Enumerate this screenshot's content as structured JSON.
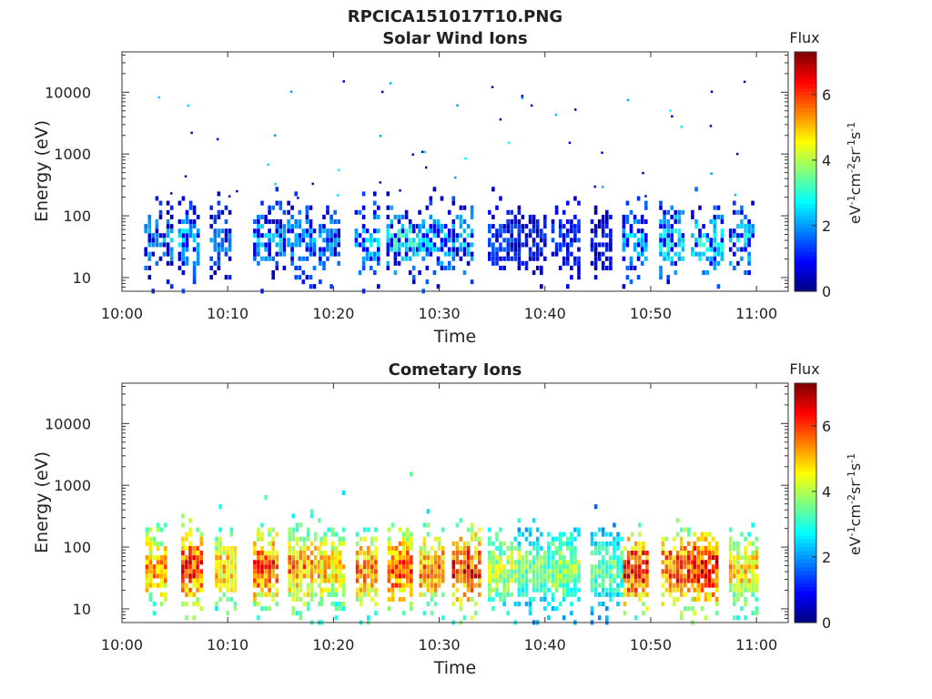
{
  "figure": {
    "title": "RPCICA151017T10.PNG"
  },
  "chart_data": [
    {
      "type": "heatmap",
      "title": "Solar Wind Ions",
      "xlabel": "Time",
      "ylabel": "Energy (eV)",
      "x_ticks": [
        "10:00",
        "10:10",
        "10:20",
        "10:30",
        "10:40",
        "10:50",
        "11:00"
      ],
      "xlim_minutes": [
        0,
        63
      ],
      "yscale": "log",
      "y_ticks": [
        "10",
        "100",
        "1000",
        "10000"
      ],
      "ylim": [
        6,
        45000
      ],
      "colorbar": {
        "title": "Flux",
        "label": "eV-1cm-2sr-1s-1",
        "ticks": [
          "0",
          "2",
          "4",
          "6"
        ],
        "range": [
          0,
          7.3
        ],
        "colormap": "jet"
      },
      "bursts": [
        {
          "t": 3.3,
          "f": 2.3
        },
        {
          "t": 6.5,
          "f": 2.5
        },
        {
          "t": 9.5,
          "f": 2.0
        },
        {
          "t": 13.6,
          "f": 2.4
        },
        {
          "t": 16.8,
          "f": 2.3
        },
        {
          "t": 19.8,
          "f": 2.2
        },
        {
          "t": 23.2,
          "f": 2.6
        },
        {
          "t": 26.2,
          "f": 3.0
        },
        {
          "t": 29.2,
          "f": 2.6
        },
        {
          "t": 32.4,
          "f": 2.7
        },
        {
          "t": 35.8,
          "f": 1.6
        },
        {
          "t": 38.6,
          "f": 1.4
        },
        {
          "t": 41.8,
          "f": 1.5
        },
        {
          "t": 45.5,
          "f": 1.2
        },
        {
          "t": 48.5,
          "f": 2.6
        },
        {
          "t": 52.0,
          "f": 2.9
        },
        {
          "t": 55.0,
          "f": 3.0
        },
        {
          "t": 58.6,
          "f": 2.7
        }
      ]
    },
    {
      "type": "heatmap",
      "title": "Cometary Ions",
      "xlabel": "Time",
      "ylabel": "Energy (eV)",
      "x_ticks": [
        "10:00",
        "10:10",
        "10:20",
        "10:30",
        "10:40",
        "10:50",
        "11:00"
      ],
      "xlim_minutes": [
        0,
        63
      ],
      "yscale": "log",
      "y_ticks": [
        "10",
        "100",
        "1000",
        "10000"
      ],
      "ylim": [
        6,
        45000
      ],
      "colorbar": {
        "title": "Flux",
        "label": "eV-1cm-2sr-1s-1",
        "ticks": [
          "0",
          "2",
          "4",
          "6"
        ],
        "range": [
          0,
          7.3
        ],
        "colormap": "jet"
      },
      "bursts": [
        {
          "t": 3.4,
          "f": 5.6
        },
        {
          "t": 6.8,
          "f": 6.4
        },
        {
          "t": 10.0,
          "f": 5.3
        },
        {
          "t": 13.6,
          "f": 6.2
        },
        {
          "t": 16.9,
          "f": 5.7
        },
        {
          "t": 19.9,
          "f": 5.3
        },
        {
          "t": 23.3,
          "f": 5.7
        },
        {
          "t": 26.3,
          "f": 6.3
        },
        {
          "t": 29.3,
          "f": 5.8
        },
        {
          "t": 32.4,
          "f": 6.5
        },
        {
          "t": 35.8,
          "f": 4.5
        },
        {
          "t": 38.6,
          "f": 3.8
        },
        {
          "t": 41.8,
          "f": 4.1
        },
        {
          "t": 45.5,
          "f": 3.6
        },
        {
          "t": 48.6,
          "f": 6.6
        },
        {
          "t": 52.2,
          "f": 6.3
        },
        {
          "t": 55.2,
          "f": 6.8
        },
        {
          "t": 58.6,
          "f": 5.2
        }
      ]
    }
  ]
}
